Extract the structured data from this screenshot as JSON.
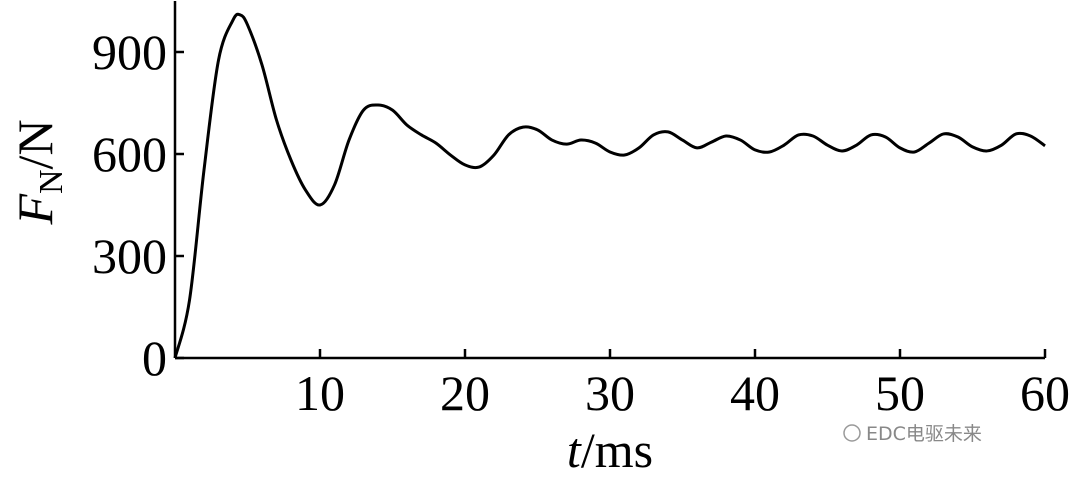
{
  "chart_data": {
    "type": "line",
    "ylabel": {
      "symbol": "F",
      "subscript": "N",
      "unit": "/N"
    },
    "xlabel": {
      "symbol": "t",
      "unit": "/ms"
    },
    "annotation": "EDC电驱未来",
    "x": [
      0,
      1,
      2,
      3,
      4,
      4.5,
      5,
      6,
      7,
      8,
      9,
      10,
      11,
      12,
      13,
      14,
      15,
      16,
      17,
      18,
      19,
      20,
      21,
      22,
      23,
      24,
      25,
      26,
      27,
      28,
      29,
      30,
      31,
      32,
      33,
      34,
      35,
      36,
      37,
      38,
      39,
      40,
      41,
      42,
      43,
      44,
      45,
      46,
      47,
      48,
      49,
      50,
      51,
      52,
      53,
      54,
      55,
      56,
      57,
      58,
      59,
      60
    ],
    "series": [
      {
        "name": "F_N",
        "color": "#000000",
        "values": [
          0,
          170,
          553,
          876,
          994,
          1009,
          980,
          862,
          700,
          582,
          494,
          450,
          509,
          641,
          729,
          744,
          729,
          685,
          656,
          632,
          597,
          568,
          562,
          597,
          656,
          679,
          671,
          641,
          629,
          641,
          632,
          606,
          597,
          618,
          656,
          665,
          641,
          618,
          635,
          653,
          641,
          612,
          606,
          626,
          656,
          653,
          626,
          609,
          626,
          656,
          650,
          618,
          606,
          632,
          659,
          650,
          621,
          609,
          626,
          659,
          653,
          624
        ]
      }
    ],
    "xlim": [
      0,
      60
    ],
    "xticks": [
      10,
      20,
      30,
      40,
      50,
      60
    ],
    "ylim": [
      0,
      1050
    ],
    "yticks": [
      0,
      300,
      600,
      900
    ]
  }
}
